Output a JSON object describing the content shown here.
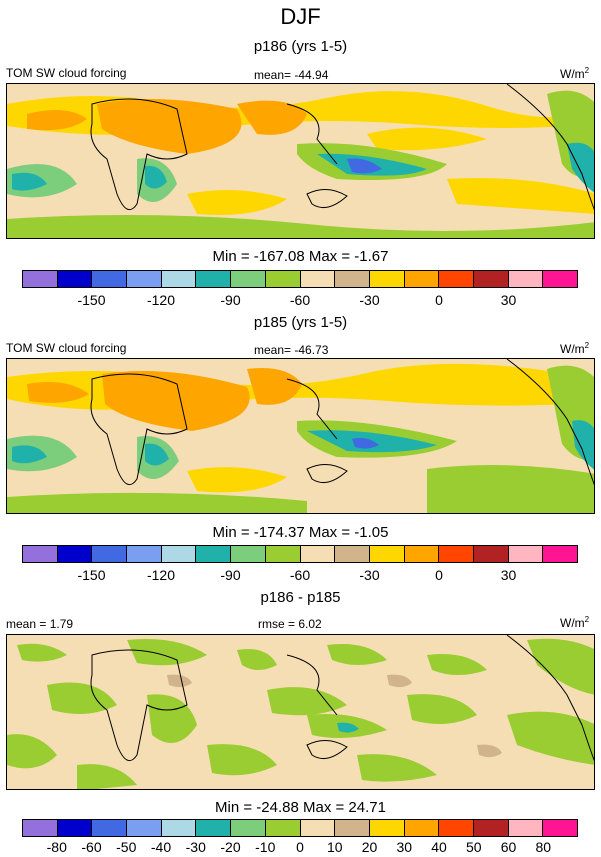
{
  "title": "DJF",
  "unit_label_base": "W/m",
  "unit_label_sup": "2",
  "panels": [
    {
      "subtitle": "p186 (yrs 1-5)",
      "left_label": "TOM SW cloud forcing",
      "center_label": "mean= -44.94",
      "minmax": "Min = -167.08 Max =  -1.67",
      "colors": [
        "#9370db",
        "#0000cd",
        "#4169e1",
        "#7b9ff0",
        "#add8e6",
        "#20b2aa",
        "#7ccd7c",
        "#9acd32",
        "#f5deb3",
        "#d2b48c",
        "#ffd700",
        "#ffa500",
        "#ff4500",
        "#b22222",
        "#ffb6c1",
        "#ff1493"
      ],
      "tick_labels": [
        "-150",
        "-120",
        "-90",
        "-60",
        "-30",
        "0",
        "30"
      ]
    },
    {
      "subtitle": "p185 (yrs 1-5)",
      "left_label": "TOM SW cloud forcing",
      "center_label": "mean= -46.73",
      "minmax": "Min = -174.37 Max =  -1.05",
      "colors": [
        "#9370db",
        "#0000cd",
        "#4169e1",
        "#7b9ff0",
        "#add8e6",
        "#20b2aa",
        "#7ccd7c",
        "#9acd32",
        "#f5deb3",
        "#d2b48c",
        "#ffd700",
        "#ffa500",
        "#ff4500",
        "#b22222",
        "#ffb6c1",
        "#ff1493"
      ],
      "tick_labels": [
        "-150",
        "-120",
        "-90",
        "-60",
        "-30",
        "0",
        "30"
      ]
    },
    {
      "subtitle": "p186 - p185",
      "left_label": "mean =   1.79",
      "center_label": "rmse =   6.02",
      "minmax": "Min = -24.88 Max =  24.71",
      "colors": [
        "#9370db",
        "#0000cd",
        "#4169e1",
        "#7b9ff0",
        "#add8e6",
        "#20b2aa",
        "#7ccd7c",
        "#9acd32",
        "#f5deb3",
        "#d2b48c",
        "#ffd700",
        "#ffa500",
        "#ff4500",
        "#b22222",
        "#ffb6c1",
        "#ff1493"
      ],
      "tick_labels": [
        "-80",
        "-60",
        "-50",
        "-40",
        "-30",
        "-20",
        "-10",
        "0",
        "10",
        "20",
        "30",
        "40",
        "50",
        "60",
        "80"
      ]
    }
  ],
  "chart_data": [
    {
      "type": "heatmap",
      "title": "p186 (yrs 1-5)",
      "variable": "TOM SW cloud forcing",
      "mean": -44.94,
      "min": -167.08,
      "max": -1.67,
      "contour_levels": [
        -150,
        -120,
        -90,
        -60,
        -30,
        0,
        30
      ]
    },
    {
      "type": "heatmap",
      "title": "p185 (yrs 1-5)",
      "variable": "TOM SW cloud forcing",
      "mean": -46.73,
      "min": -174.37,
      "max": -1.05,
      "contour_levels": [
        -150,
        -120,
        -90,
        -60,
        -30,
        0,
        30
      ]
    },
    {
      "type": "heatmap",
      "title": "p186 - p185",
      "mean": 1.79,
      "rmse": 6.02,
      "min": -24.88,
      "max": 24.71,
      "contour_levels": [
        -80,
        -60,
        -50,
        -40,
        -30,
        -20,
        -10,
        0,
        10,
        20,
        30,
        40,
        50,
        60,
        80
      ]
    }
  ]
}
